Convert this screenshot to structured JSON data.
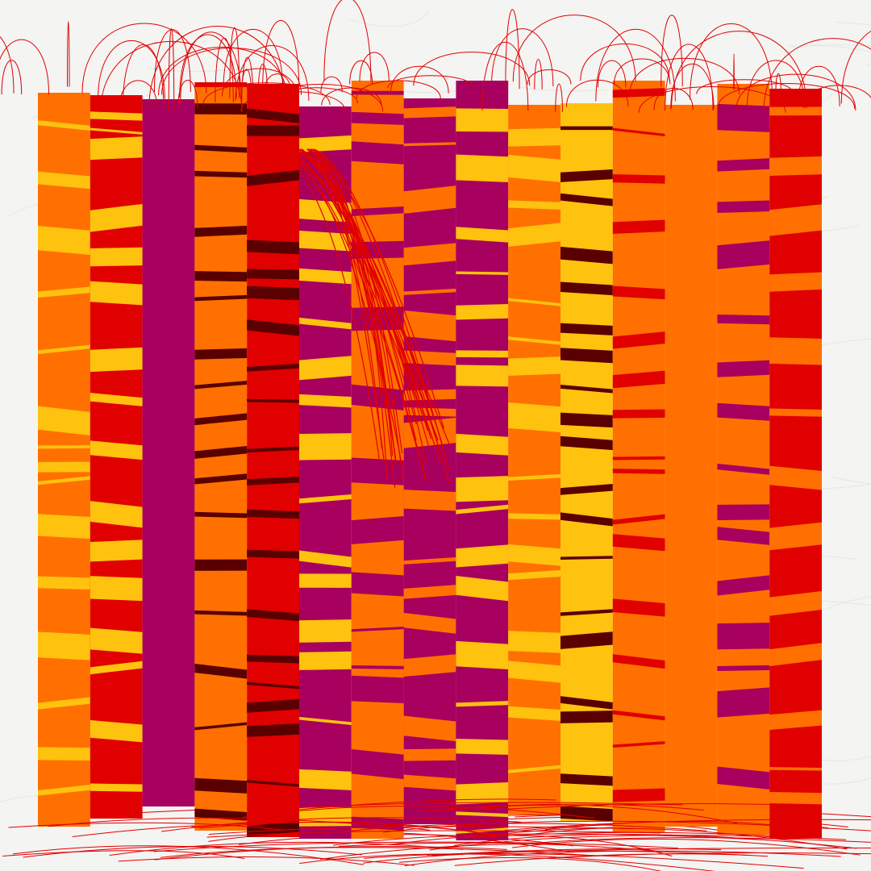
{
  "artwork": {
    "background": "#f4f4f2",
    "line_color": "#e00000",
    "palette": {
      "orange": "#ff7000",
      "red": "#e00000",
      "magenta": "#a8005e",
      "yellow": "#ffc20e",
      "dark": "#5a0000"
    },
    "columns": [
      {
        "base": "orange",
        "accent": [
          "yellow"
        ]
      },
      {
        "base": "red",
        "accent": [
          "yellow"
        ]
      },
      {
        "base": "magenta",
        "accent": []
      },
      {
        "base": "orange",
        "accent": [
          "dark"
        ]
      },
      {
        "base": "red",
        "accent": [
          "dark"
        ]
      },
      {
        "base": "magenta",
        "accent": [
          "yellow"
        ]
      },
      {
        "base": "orange",
        "accent": [
          "magenta"
        ]
      },
      {
        "base": "magenta",
        "accent": [
          "orange"
        ]
      },
      {
        "base": "magenta",
        "accent": [
          "yellow"
        ]
      },
      {
        "base": "orange",
        "accent": [
          "yellow"
        ]
      },
      {
        "base": "yellow",
        "accent": [
          "dark"
        ]
      },
      {
        "base": "orange",
        "accent": [
          "red"
        ]
      },
      {
        "base": "orange",
        "accent": []
      },
      {
        "base": "orange",
        "accent": [
          "magenta"
        ]
      },
      {
        "base": "red",
        "accent": [
          "orange"
        ]
      }
    ]
  }
}
